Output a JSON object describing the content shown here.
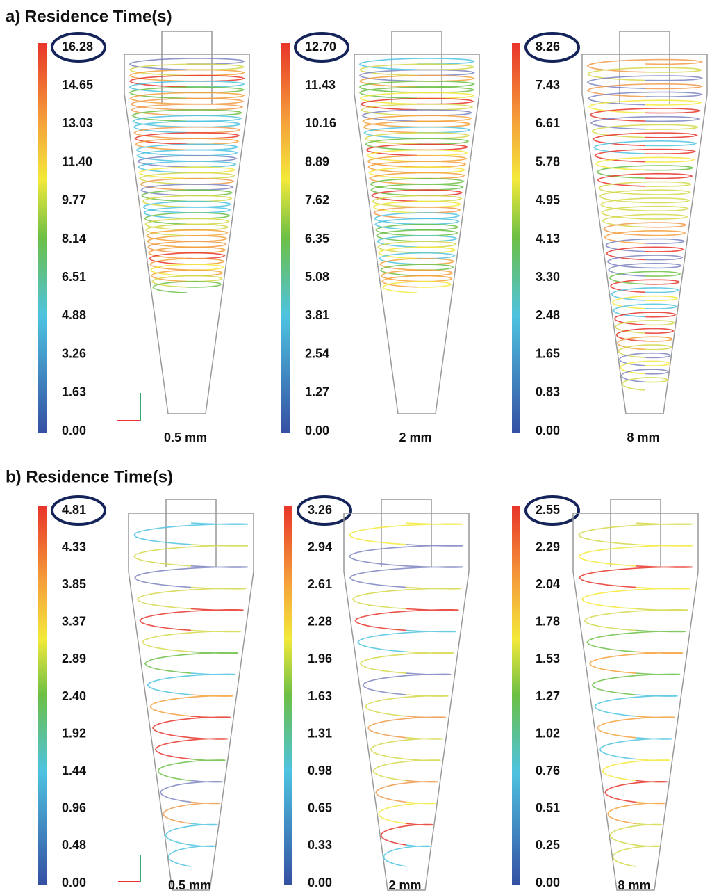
{
  "sections": [
    {
      "title": "a) Residence Time(s)",
      "panels": [
        {
          "colorbar_labels": [
            "16.28",
            "14.65",
            "13.03",
            "11.40",
            "9.77",
            "8.14",
            "6.51",
            "4.88",
            "3.26",
            "1.63",
            "0.00"
          ],
          "size": "0.5 mm"
        },
        {
          "colorbar_labels": [
            "12.70",
            "11.43",
            "10.16",
            "8.89",
            "7.62",
            "6.35",
            "5.08",
            "3.81",
            "2.54",
            "1.27",
            "0.00"
          ],
          "size": "2 mm"
        },
        {
          "colorbar_labels": [
            "8.26",
            "7.43",
            "6.61",
            "5.78",
            "4.95",
            "4.13",
            "3.30",
            "2.48",
            "1.65",
            "0.83",
            "0.00"
          ],
          "size": "8 mm"
        }
      ]
    },
    {
      "title": "b) Residence Time(s)",
      "panels": [
        {
          "colorbar_labels": [
            "4.81",
            "4.33",
            "3.85",
            "3.37",
            "2.89",
            "2.40",
            "1.92",
            "1.44",
            "0.96",
            "0.48",
            "0.00"
          ],
          "size": "0.5 mm"
        },
        {
          "colorbar_labels": [
            "3.26",
            "2.94",
            "2.61",
            "2.28",
            "1.96",
            "1.63",
            "1.31",
            "0.98",
            "0.65",
            "0.33",
            "0.00"
          ],
          "size": "2 mm"
        },
        {
          "colorbar_labels": [
            "2.55",
            "2.29",
            "2.04",
            "1.78",
            "1.53",
            "1.27",
            "1.02",
            "0.76",
            "0.51",
            "0.25",
            "0.00"
          ],
          "size": "8 mm"
        }
      ]
    }
  ]
}
